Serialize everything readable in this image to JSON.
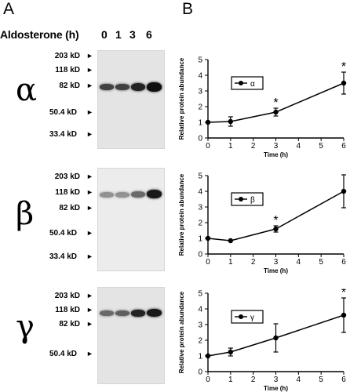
{
  "panel_a": {
    "letter": "A",
    "header_label": "Aldosterone (h)",
    "lanes": [
      "0",
      "1",
      "3",
      "6"
    ],
    "subunits": [
      {
        "symbol": "α",
        "markers": [
          "203 kD",
          "118 kD",
          "82 kD",
          "50.4 kD",
          "33.4 kD"
        ],
        "band_intensity": [
          0.75,
          0.75,
          0.9,
          1.0
        ]
      },
      {
        "symbol": "β",
        "markers": [
          "203 kD",
          "118 kD",
          "82 kD",
          "50.4 kD",
          "33.4 kD"
        ],
        "band_intensity": [
          0.35,
          0.35,
          0.55,
          0.95
        ]
      },
      {
        "symbol": "γ",
        "markers": [
          "203 kD",
          "118 kD",
          "82 kD",
          "50.4 kD"
        ],
        "band_intensity": [
          0.55,
          0.6,
          0.9,
          0.95
        ]
      }
    ]
  },
  "panel_b": {
    "letter": "B",
    "significance_marker": "*"
  },
  "chart_data": [
    {
      "type": "line",
      "xlabel": "Time (h)",
      "ylabel": "Relative protein abundance",
      "legend": "α",
      "legend_position": "top-left",
      "xlim": [
        0,
        6
      ],
      "ylim": [
        0,
        5
      ],
      "xticks": [
        0,
        1,
        2,
        3,
        4,
        5,
        6
      ],
      "yticks": [
        0,
        1,
        2,
        3,
        4,
        5
      ],
      "x": [
        0,
        1,
        3,
        6
      ],
      "y": [
        1.0,
        1.05,
        1.65,
        3.5
      ],
      "error": [
        0.0,
        0.3,
        0.25,
        0.7
      ],
      "significant": [
        false,
        false,
        true,
        true
      ],
      "grid": false
    },
    {
      "type": "line",
      "xlabel": "Time (h)",
      "ylabel": "Relative protein abundance",
      "legend": "β",
      "legend_position": "top-left",
      "xlim": [
        0,
        6
      ],
      "ylim": [
        0,
        5
      ],
      "xticks": [
        0,
        1,
        2,
        3,
        4,
        5,
        6
      ],
      "yticks": [
        0,
        1,
        2,
        3,
        4,
        5
      ],
      "x": [
        0,
        1,
        3,
        6
      ],
      "y": [
        1.0,
        0.85,
        1.6,
        4.0
      ],
      "error": [
        0.0,
        0.0,
        0.2,
        1.05
      ],
      "significant": [
        false,
        false,
        true,
        true
      ],
      "grid": false
    },
    {
      "type": "line",
      "xlabel": "Time (h)",
      "ylabel": "Relative protein abundance",
      "legend": "γ",
      "legend_position": "top-left",
      "xlim": [
        0,
        6
      ],
      "ylim": [
        0,
        5
      ],
      "xticks": [
        0,
        1,
        2,
        3,
        4,
        5,
        6
      ],
      "yticks": [
        0,
        1,
        2,
        3,
        4,
        5
      ],
      "x": [
        0,
        1,
        3,
        6
      ],
      "y": [
        1.0,
        1.25,
        2.15,
        3.6
      ],
      "error": [
        0.0,
        0.25,
        0.9,
        1.1
      ],
      "significant": [
        false,
        false,
        false,
        true
      ],
      "grid": false
    }
  ]
}
